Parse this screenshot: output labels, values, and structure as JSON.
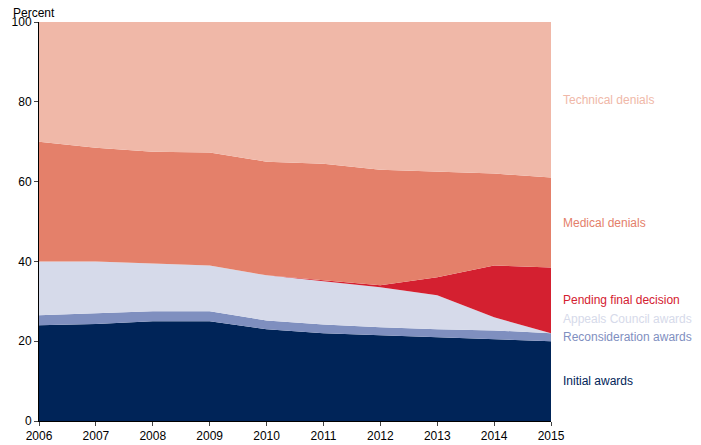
{
  "chart_data": {
    "type": "area",
    "stacked": true,
    "ylabel": "Percent",
    "x": [
      2006,
      2007,
      2008,
      2009,
      2010,
      2011,
      2012,
      2013,
      2014,
      2015
    ],
    "xlim": [
      2006,
      2015
    ],
    "xticks": [
      2006,
      2007,
      2008,
      2009,
      2010,
      2011,
      2012,
      2013,
      2014,
      2015
    ],
    "ylim": [
      0,
      100
    ],
    "yticks": [
      0,
      20,
      40,
      60,
      80,
      100
    ],
    "grid": false,
    "series": [
      {
        "name": "Initial awards",
        "color": "#002458",
        "values": [
          24,
          24.3,
          25,
          25,
          23,
          22,
          21.5,
          21,
          20.5,
          20
        ]
      },
      {
        "name": "Reconsideration awards",
        "color": "#7f8fbf",
        "values": [
          2.5,
          2.7,
          2.5,
          2.5,
          2.2,
          2.2,
          2.0,
          2.0,
          2.2,
          2.0
        ]
      },
      {
        "name": "Appeals Council awards",
        "color": "#d6daea",
        "values": [
          13.5,
          13,
          12,
          11.5,
          11.3,
          10.8,
          10,
          8.5,
          3.3,
          0
        ]
      },
      {
        "name": "Pending final decision",
        "color": "#d42030",
        "values": [
          0,
          0,
          0,
          0,
          0,
          0.2,
          0.5,
          4.5,
          13,
          16.5
        ]
      },
      {
        "name": "Medical denials",
        "color": "#e4806a",
        "values": [
          30,
          28.5,
          28,
          28.3,
          28.5,
          29.3,
          29,
          26.5,
          23,
          22.5
        ]
      },
      {
        "name": "Technical denials",
        "color": "#f0b8a8",
        "values": [
          30,
          31.5,
          32.5,
          32.7,
          35,
          35.5,
          37,
          37.5,
          38,
          39
        ]
      }
    ]
  }
}
